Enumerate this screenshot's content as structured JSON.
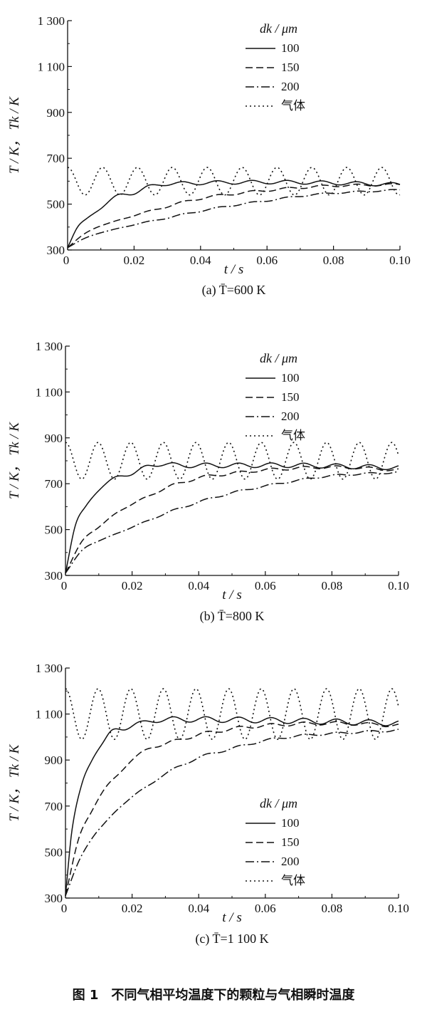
{
  "figure_caption": "图 1　不同气相平均温度下的颗粒与气相瞬时温度",
  "chart_data": [
    {
      "type": "line",
      "caption": "(a) T̄=600 K",
      "xlabel": "t / s",
      "ylabel": "T / K， Tk / K",
      "xlim": [
        0,
        0.1
      ],
      "ylim": [
        300,
        1300
      ],
      "xticks": [
        "0",
        "0.02",
        "0.04",
        "0.06",
        "0.08",
        "0.10"
      ],
      "yticks": [
        "300",
        "500",
        "700",
        "900",
        "1 100",
        "1 300"
      ],
      "legend_title": "dk / μm",
      "legend_position": "top-right",
      "gas_mean": 600,
      "gas_amplitude": 60,
      "gas_period": 0.0105,
      "series": [
        {
          "name": "100",
          "style": "solid",
          "x": [
            0,
            0.003,
            0.006,
            0.01,
            0.015,
            0.02,
            0.025,
            0.035,
            0.05,
            0.07,
            0.1
          ],
          "y": [
            310,
            400,
            440,
            480,
            540,
            545,
            580,
            590,
            595,
            595,
            585
          ]
        },
        {
          "name": "150",
          "style": "dash",
          "x": [
            0,
            0.005,
            0.01,
            0.02,
            0.03,
            0.04,
            0.05,
            0.06,
            0.07,
            0.08,
            0.1
          ],
          "y": [
            310,
            370,
            405,
            450,
            490,
            525,
            545,
            560,
            572,
            580,
            585
          ]
        },
        {
          "name": "200",
          "style": "dashdot",
          "x": [
            0,
            0.005,
            0.01,
            0.02,
            0.03,
            0.04,
            0.05,
            0.06,
            0.07,
            0.08,
            0.1
          ],
          "y": [
            310,
            350,
            375,
            410,
            440,
            470,
            495,
            515,
            535,
            548,
            562
          ]
        },
        {
          "name": "气体",
          "style": "dot"
        }
      ]
    },
    {
      "type": "line",
      "caption": "(b) T̄=800 K",
      "xlabel": "t / s",
      "ylabel": "T / K， Tk / K",
      "xlim": [
        0,
        0.1
      ],
      "ylim": [
        300,
        1300
      ],
      "xticks": [
        "0",
        "0.02",
        "0.04",
        "0.06",
        "0.08",
        "0.10"
      ],
      "yticks": [
        "300",
        "500",
        "700",
        "900",
        "1 100",
        "1 300"
      ],
      "legend_title": "dk / μm",
      "legend_position": "top-right",
      "gas_mean": 800,
      "gas_amplitude": 80,
      "gas_period": 0.0098,
      "series": [
        {
          "name": "100",
          "style": "solid",
          "x": [
            0,
            0.003,
            0.006,
            0.01,
            0.015,
            0.02,
            0.025,
            0.035,
            0.05,
            0.07,
            0.1
          ],
          "y": [
            310,
            520,
            600,
            670,
            730,
            740,
            780,
            780,
            780,
            780,
            770
          ]
        },
        {
          "name": "150",
          "style": "dash",
          "x": [
            0,
            0.005,
            0.01,
            0.015,
            0.02,
            0.03,
            0.04,
            0.05,
            0.06,
            0.08,
            0.1
          ],
          "y": [
            310,
            450,
            510,
            570,
            610,
            680,
            725,
            745,
            760,
            772,
            760
          ]
        },
        {
          "name": "200",
          "style": "dashdot",
          "x": [
            0,
            0.005,
            0.01,
            0.02,
            0.03,
            0.04,
            0.05,
            0.06,
            0.07,
            0.08,
            0.1
          ],
          "y": [
            310,
            410,
            450,
            510,
            570,
            620,
            660,
            690,
            715,
            735,
            750
          ]
        },
        {
          "name": "气体",
          "style": "dot"
        }
      ]
    },
    {
      "type": "line",
      "caption": "(c) T̄=1 100 K",
      "xlabel": "t / s",
      "ylabel": "T / K， Tk / K",
      "xlim": [
        0,
        0.1
      ],
      "ylim": [
        300,
        1300
      ],
      "xticks": [
        "0",
        "0.02",
        "0.04",
        "0.06",
        "0.08",
        "0.10"
      ],
      "yticks": [
        "300",
        "500",
        "700",
        "900",
        "1 100",
        "1 300"
      ],
      "legend_title": "dk / μm",
      "legend_position": "bottom-right",
      "gas_mean": 1100,
      "gas_amplitude": 110,
      "gas_period": 0.0098,
      "series": [
        {
          "name": "100",
          "style": "solid",
          "x": [
            0,
            0.002,
            0.005,
            0.008,
            0.011,
            0.014,
            0.018,
            0.022,
            0.03,
            0.05,
            0.07,
            0.1
          ],
          "y": [
            310,
            600,
            800,
            900,
            970,
            1030,
            1035,
            1060,
            1075,
            1075,
            1070,
            1060
          ]
        },
        {
          "name": "150",
          "style": "dash",
          "x": [
            0,
            0.004,
            0.008,
            0.012,
            0.016,
            0.02,
            0.025,
            0.03,
            0.04,
            0.05,
            0.06,
            0.08,
            0.1
          ],
          "y": [
            310,
            560,
            680,
            780,
            840,
            900,
            950,
            970,
            1010,
            1035,
            1050,
            1060,
            1050
          ]
        },
        {
          "name": "200",
          "style": "dashdot",
          "x": [
            0,
            0.004,
            0.008,
            0.012,
            0.016,
            0.02,
            0.025,
            0.03,
            0.04,
            0.05,
            0.06,
            0.07,
            0.08,
            0.1
          ],
          "y": [
            310,
            460,
            560,
            630,
            690,
            740,
            790,
            840,
            910,
            950,
            985,
            1005,
            1015,
            1030
          ]
        },
        {
          "name": "气体",
          "style": "dot"
        }
      ]
    }
  ]
}
